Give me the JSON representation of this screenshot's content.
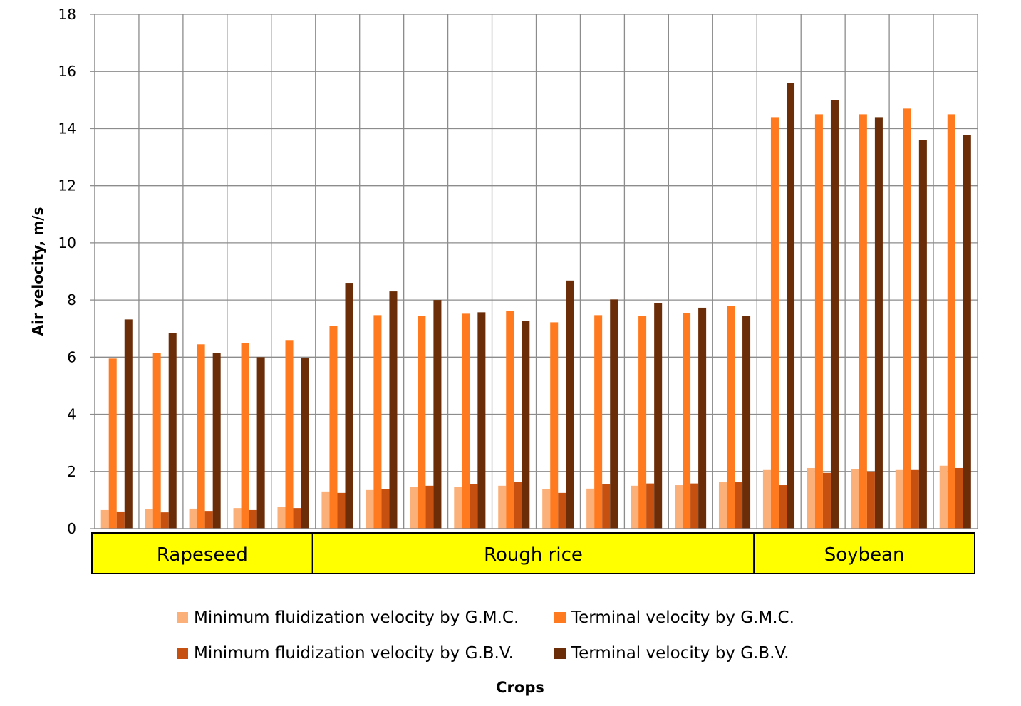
{
  "chart_data": {
    "type": "bar",
    "xlabel": "Crops",
    "ylabel": "Air velocity, m/s",
    "ylim": [
      0,
      18
    ],
    "yticks": [
      "0",
      "2",
      "4",
      "6",
      "8",
      "10",
      "12",
      "14",
      "16",
      "18"
    ],
    "grid": true,
    "legend_position": "bottom",
    "groups": [
      {
        "label": "Rapeseed",
        "count": 5,
        "color": "#ffff00"
      },
      {
        "label": "Rough rice",
        "count": 10,
        "color": "#ffff00"
      },
      {
        "label": "Soybean",
        "count": 5,
        "color": "#ffff00"
      }
    ],
    "series": [
      {
        "name": "Minimum fluidization velocity by G.M.C.",
        "color": "#fbb07a",
        "values": [
          0.65,
          0.68,
          0.7,
          0.72,
          0.75,
          1.3,
          1.35,
          1.47,
          1.47,
          1.5,
          1.38,
          1.4,
          1.5,
          1.52,
          1.62,
          2.05,
          2.12,
          2.08,
          2.05,
          2.2
        ]
      },
      {
        "name": "Terminal velocity by G.M.C.",
        "color": "#ff7a1f",
        "values": [
          5.95,
          6.15,
          6.45,
          6.5,
          6.6,
          7.1,
          7.47,
          7.45,
          7.52,
          7.62,
          7.22,
          7.47,
          7.45,
          7.53,
          7.78,
          14.4,
          14.5,
          14.5,
          14.7,
          14.5
        ]
      },
      {
        "name": "Minimum fluidization velocity by G.B.V.",
        "color": "#c5500f",
        "values": [
          0.6,
          0.57,
          0.62,
          0.65,
          0.72,
          1.25,
          1.38,
          1.5,
          1.55,
          1.63,
          1.25,
          1.55,
          1.58,
          1.58,
          1.62,
          1.52,
          1.95,
          2.0,
          2.05,
          2.12
        ]
      },
      {
        "name": "Terminal velocity by G.B.V.",
        "color": "#6b2d08",
        "values": [
          7.32,
          6.85,
          6.15,
          6.0,
          5.98,
          8.6,
          8.3,
          8.0,
          7.57,
          7.27,
          8.68,
          8.02,
          7.88,
          7.73,
          7.45,
          15.6,
          15.0,
          14.4,
          13.6,
          13.78
        ]
      }
    ]
  }
}
